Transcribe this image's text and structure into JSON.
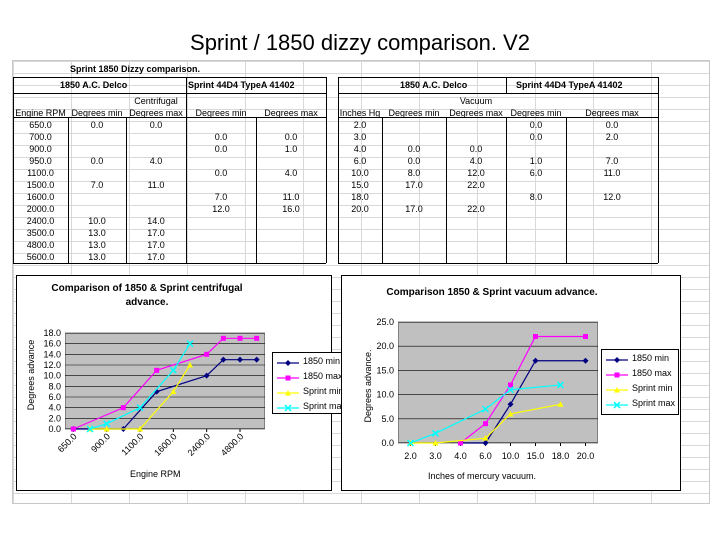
{
  "title": "Sprint / 1850 dizzy comparison. V2",
  "table": {
    "heading": "Sprint 1850 Dizzy comparison.",
    "left_groups": [
      "1850 A.C. Delco",
      "Sprint 44D4 TypeA 41402"
    ],
    "left_section": "Centrifugal",
    "left_columns": [
      "Engine RPM",
      "Degrees min",
      "Degrees max",
      "Degrees min",
      "Degrees max"
    ],
    "left_rows": [
      [
        "650.0",
        "0.0",
        "0.0",
        "",
        ""
      ],
      [
        "700.0",
        "",
        "",
        "0.0",
        "0.0"
      ],
      [
        "900.0",
        "",
        "",
        "0.0",
        "1.0"
      ],
      [
        "950.0",
        "0.0",
        "4.0",
        "",
        ""
      ],
      [
        "1100.0",
        "",
        "",
        "0.0",
        "4.0"
      ],
      [
        "1500.0",
        "7.0",
        "11.0",
        "",
        ""
      ],
      [
        "1600.0",
        "",
        "",
        "7.0",
        "11.0"
      ],
      [
        "2000.0",
        "",
        "",
        "12.0",
        "16.0"
      ],
      [
        "2400.0",
        "10.0",
        "14.0",
        "",
        ""
      ],
      [
        "3500.0",
        "13.0",
        "17.0",
        "",
        ""
      ],
      [
        "4800.0",
        "13.0",
        "17.0",
        "",
        ""
      ],
      [
        "5600.0",
        "13.0",
        "17.0",
        "",
        ""
      ]
    ],
    "right_groups": [
      "1850 A.C. Delco",
      "Sprint 44D4 TypeA 41402"
    ],
    "right_section": "Vacuum",
    "right_columns": [
      "Inches Hg",
      "Degrees min",
      "Degrees max",
      "Degrees min",
      "Degrees max"
    ],
    "right_rows": [
      [
        "2.0",
        "",
        "",
        "0.0",
        "0.0"
      ],
      [
        "3.0",
        "",
        "",
        "0.0",
        "2.0"
      ],
      [
        "4.0",
        "0.0",
        "0.0",
        "",
        ""
      ],
      [
        "6.0",
        "0.0",
        "4.0",
        "1.0",
        "7.0"
      ],
      [
        "10.0",
        "8.0",
        "12.0",
        "6.0",
        "11.0"
      ],
      [
        "15.0",
        "17.0",
        "22.0",
        "",
        ""
      ],
      [
        "18.0",
        "",
        "",
        "8.0",
        "12.0"
      ],
      [
        "20.0",
        "17.0",
        "22.0",
        "",
        ""
      ]
    ]
  },
  "chart_data": [
    {
      "type": "line",
      "title": "Comparison of 1850 & Sprint centrifugal advance.",
      "xlabel": "Engine RPM",
      "ylabel": "Degrees advance",
      "categories": [
        "650.0",
        "700.0",
        "900.0",
        "950.0",
        "1100.0",
        "1500.0",
        "1600.0",
        "2000.0",
        "2400.0",
        "3500.0",
        "4800.0",
        "5600.0"
      ],
      "xtick_labels": [
        "650.0",
        "900.0",
        "1100.0",
        "1600.0",
        "2400.0",
        "4800.0"
      ],
      "xtick_indices": [
        0,
        2,
        4,
        6,
        8,
        10
      ],
      "ylim": [
        0,
        18
      ],
      "yticks": [
        "0.0",
        "2.0",
        "4.0",
        "6.0",
        "8.0",
        "10.0",
        "12.0",
        "14.0",
        "16.0",
        "18.0"
      ],
      "grid": true,
      "legend": "right",
      "series": [
        {
          "name": "1850 min",
          "color": "#000080",
          "marker": "diamond",
          "values": [
            0,
            null,
            null,
            0,
            null,
            7,
            null,
            null,
            10,
            13,
            13,
            13
          ]
        },
        {
          "name": "1850 max",
          "color": "#ff00ff",
          "marker": "square",
          "values": [
            0,
            null,
            null,
            4,
            null,
            11,
            null,
            null,
            14,
            17,
            17,
            17
          ]
        },
        {
          "name": "Sprint min",
          "color": "#ffff00",
          "marker": "triangle",
          "values": [
            null,
            0,
            0,
            null,
            0,
            null,
            7,
            12,
            null,
            null,
            null,
            null
          ]
        },
        {
          "name": "Sprint max",
          "color": "#00ffff",
          "marker": "x",
          "values": [
            null,
            0,
            1,
            null,
            4,
            null,
            11,
            16,
            null,
            null,
            null,
            null
          ]
        }
      ]
    },
    {
      "type": "line",
      "title": "Comparison 1850 & Sprint vacuum advance.",
      "xlabel": "Inches of mercury vacuum.",
      "ylabel": "Degrees advance.",
      "categories": [
        "2.0",
        "3.0",
        "4.0",
        "6.0",
        "10.0",
        "15.0",
        "18.0",
        "20.0"
      ],
      "xtick_labels": [
        "2.0",
        "3.0",
        "4.0",
        "6.0",
        "10.0",
        "15.0",
        "18.0",
        "20.0"
      ],
      "xtick_indices": [
        0,
        1,
        2,
        3,
        4,
        5,
        6,
        7
      ],
      "ylim": [
        0,
        25
      ],
      "yticks": [
        "0.0",
        "5.0",
        "10.0",
        "15.0",
        "20.0",
        "25.0"
      ],
      "grid": true,
      "legend": "right",
      "series": [
        {
          "name": "1850 min",
          "color": "#000080",
          "marker": "diamond",
          "values": [
            null,
            null,
            0,
            0,
            8,
            17,
            null,
            17
          ]
        },
        {
          "name": "1850 max",
          "color": "#ff00ff",
          "marker": "square",
          "values": [
            null,
            null,
            0,
            4,
            12,
            22,
            null,
            22
          ]
        },
        {
          "name": "Sprint min",
          "color": "#ffff00",
          "marker": "triangle",
          "values": [
            0,
            0,
            null,
            1,
            6,
            null,
            8,
            null
          ]
        },
        {
          "name": "Sprint max",
          "color": "#00ffff",
          "marker": "x",
          "values": [
            0,
            2,
            null,
            7,
            11,
            null,
            12,
            null
          ]
        }
      ]
    }
  ]
}
